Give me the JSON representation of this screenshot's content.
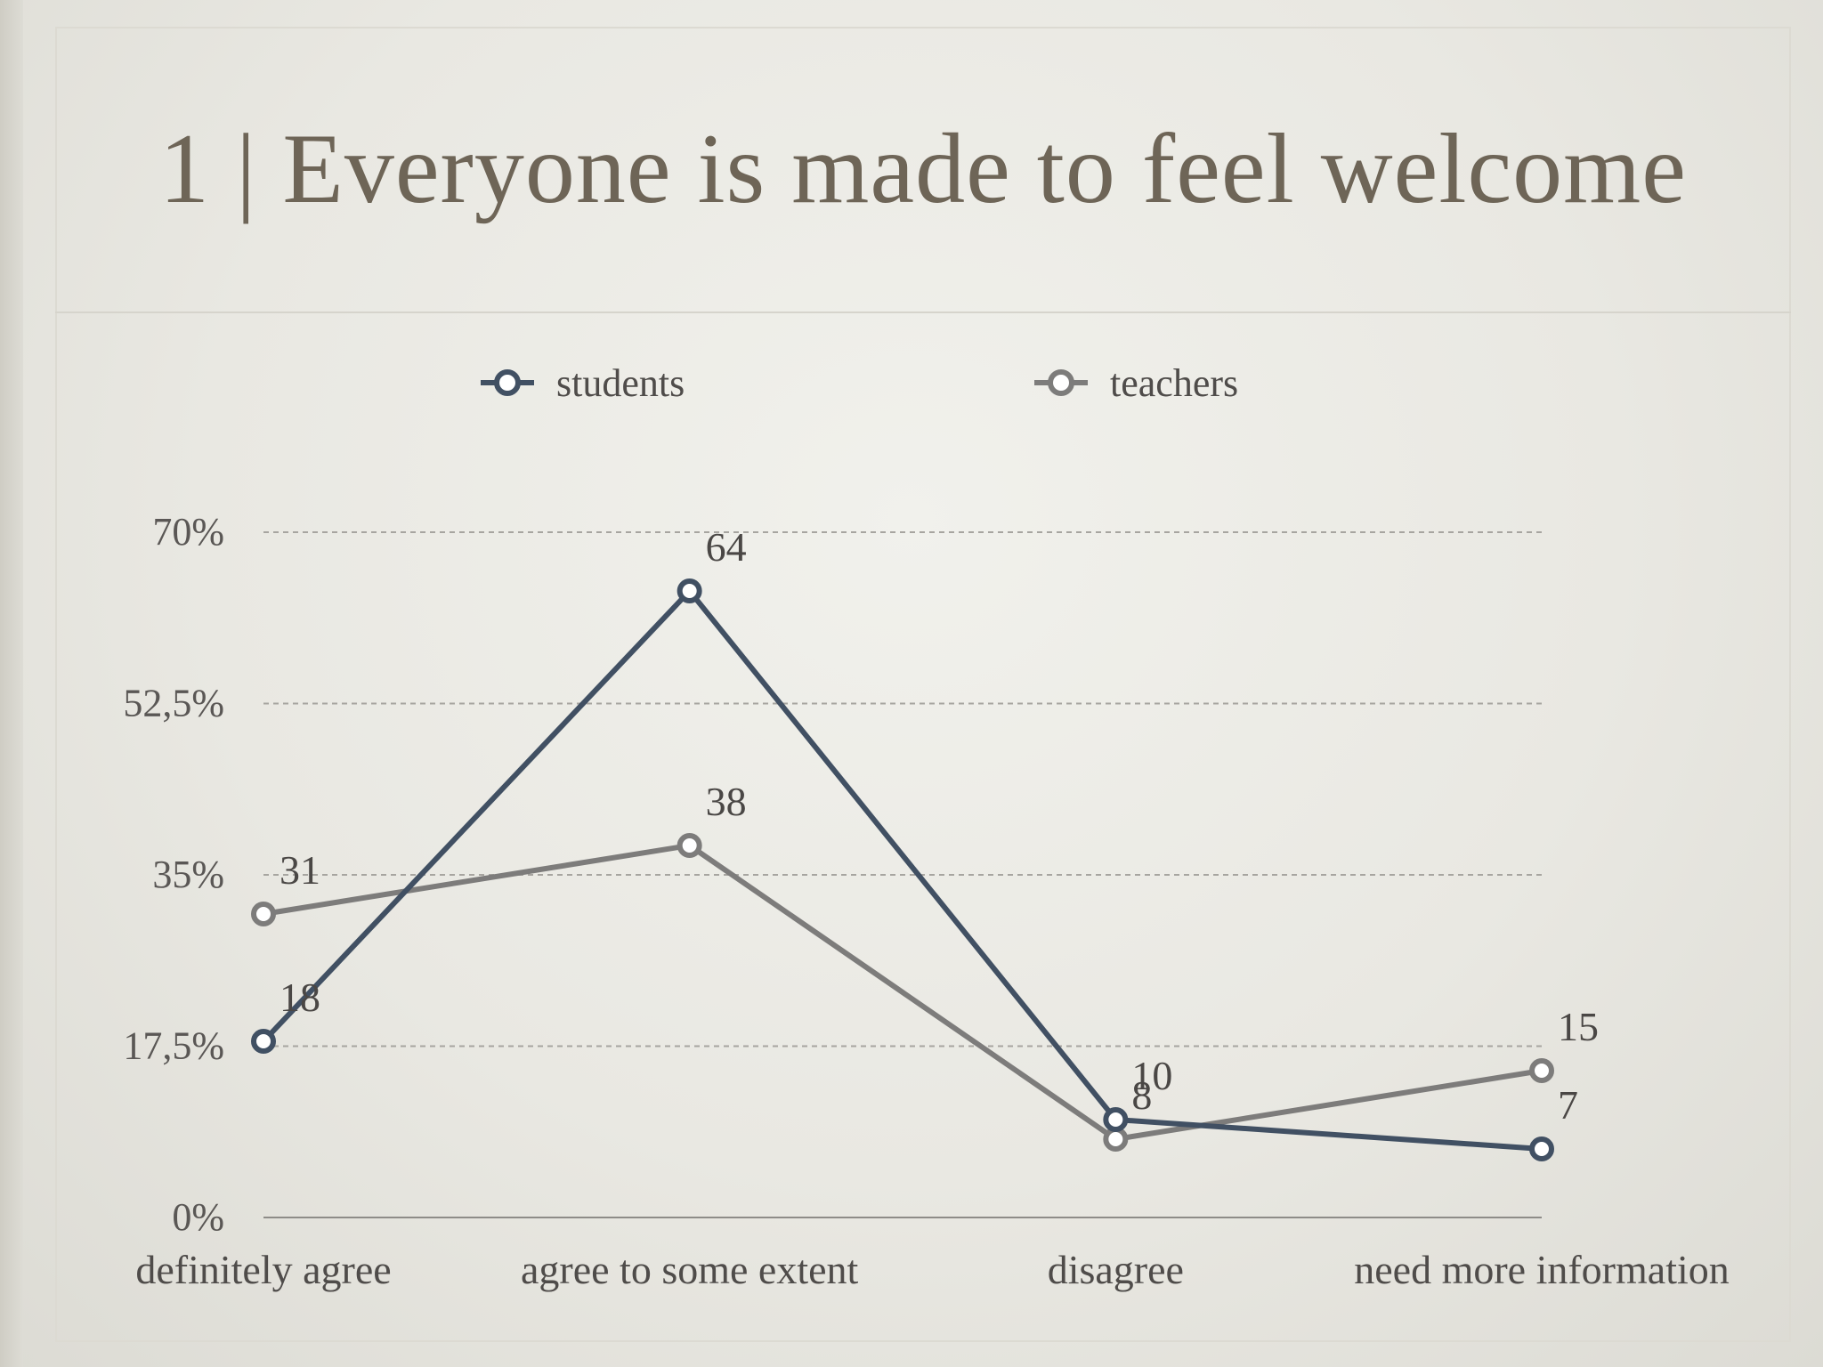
{
  "slide": {
    "title": "1 | Everyone is made to feel welcome"
  },
  "chart_data": {
    "type": "line",
    "categories": [
      "definitely agree",
      "agree to some extent",
      "disagree",
      "need more information"
    ],
    "series": [
      {
        "name": "students",
        "values": [
          18,
          64,
          10,
          7
        ],
        "color": "#415063"
      },
      {
        "name": "teachers",
        "values": [
          31,
          38,
          8,
          15
        ],
        "color": "#7d7c7b"
      }
    ],
    "yticks": [
      "0%",
      "17,5%",
      "35%",
      "52,5%",
      "70%"
    ],
    "ytick_values": [
      0,
      17.5,
      35,
      52.5,
      70
    ],
    "ylim": [
      0,
      70
    ],
    "legend": "top",
    "grid": true,
    "grid_style": "dashed"
  }
}
